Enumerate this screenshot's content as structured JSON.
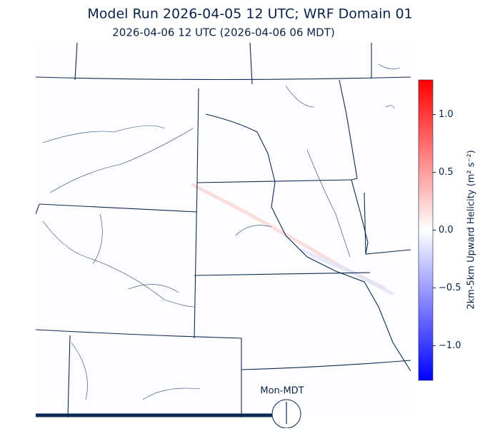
{
  "title": "Model Run 2026-04-05 12 UTC; WRF Domain 01",
  "subtitle": "2026-04-06 12 UTC  (2026-04-06 06 MDT)",
  "colorbar": {
    "label": "2km-5km Upward Helicity (m² s⁻²)",
    "lim": [
      -1.3,
      1.3
    ],
    "ticks": [
      {
        "value": 1.0,
        "label": "1.0"
      },
      {
        "value": 0.5,
        "label": "0.5"
      },
      {
        "value": 0.0,
        "label": "0.0"
      },
      {
        "value": -0.5,
        "label": "−0.5"
      },
      {
        "value": -1.0,
        "label": "−1.0"
      }
    ]
  },
  "clock_label": "Mon-MDT"
}
